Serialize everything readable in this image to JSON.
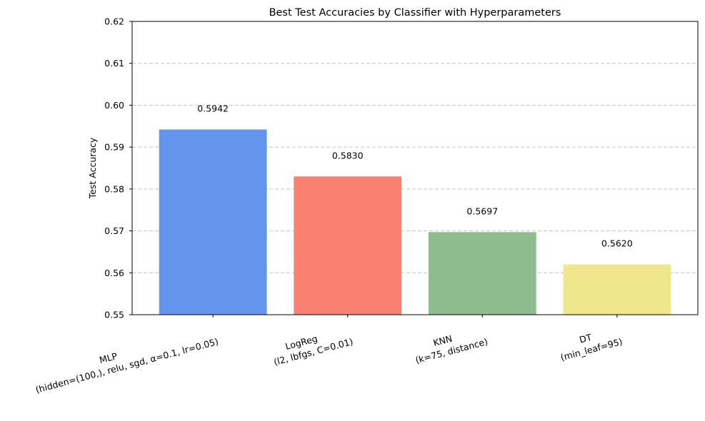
{
  "chart_data": {
    "type": "bar",
    "title": "Best Test Accuracies by Classifier with Hyperparameters",
    "xlabel": "",
    "ylabel": "Test Accuracy",
    "ylim": [
      0.55,
      0.62
    ],
    "yticks": [
      "0.55",
      "0.56",
      "0.57",
      "0.58",
      "0.59",
      "0.60",
      "0.61",
      "0.62"
    ],
    "grid": "y-dashed",
    "categories": [
      {
        "name": "MLP",
        "params": "(hidden=(100,), relu, sgd, α=0.1, lr=0.05)"
      },
      {
        "name": "LogReg",
        "params": "(l2, lbfgs, C=0.01)"
      },
      {
        "name": "KNN",
        "params": "(k=75, distance)"
      },
      {
        "name": "DT",
        "params": "(min_leaf=95)"
      }
    ],
    "values": [
      0.5942,
      0.583,
      0.5697,
      0.562
    ],
    "value_labels": [
      "0.5942",
      "0.5830",
      "0.5697",
      "0.5620"
    ],
    "colors": [
      "#6495ed",
      "#fa8072",
      "#8fbc8f",
      "#f0e68c"
    ]
  }
}
